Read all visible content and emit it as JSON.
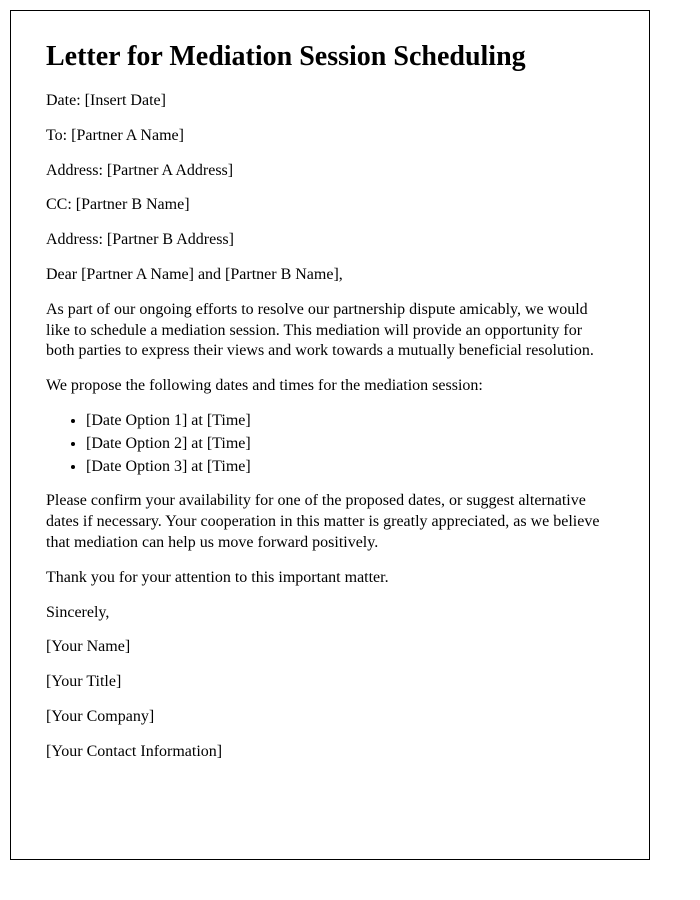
{
  "title": "Letter for Mediation Session Scheduling",
  "fields": {
    "date_label": "Date: ",
    "date_value": "[Insert Date]",
    "to_label": "To: ",
    "to_value": "[Partner A Name]",
    "address_a_label": "Address: ",
    "address_a_value": "[Partner A Address]",
    "cc_label": "CC: ",
    "cc_value": "[Partner B Name]",
    "address_b_label": "Address: ",
    "address_b_value": "[Partner B Address]"
  },
  "salutation": "Dear [Partner A Name] and [Partner B Name],",
  "body": {
    "para1": "As part of our ongoing efforts to resolve our partnership dispute amicably, we would like to schedule a mediation session. This mediation will provide an opportunity for both parties to express their views and work towards a mutually beneficial resolution.",
    "para2": "We propose the following dates and times for the mediation session:",
    "options": [
      "[Date Option 1] at [Time]",
      "[Date Option 2] at [Time]",
      "[Date Option 3] at [Time]"
    ],
    "para3": "Please confirm your availability for one of the proposed dates, or suggest alternative dates if necessary. Your cooperation in this matter is greatly appreciated, as we believe that mediation can help us move forward positively.",
    "para4": "Thank you for your attention to this important matter."
  },
  "closing": {
    "signoff": "Sincerely,",
    "name": "[Your Name]",
    "title": "[Your Title]",
    "company": "[Your Company]",
    "contact": "[Your Contact Information]"
  }
}
